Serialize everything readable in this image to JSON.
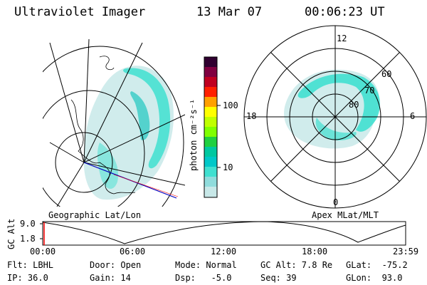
{
  "header": {
    "instrument": "Ultraviolet Imager",
    "date": "13 Mar 07",
    "time": "00:06:23 UT"
  },
  "geo_panel": {
    "label": "Geographic Lat/Lon"
  },
  "apex_panel": {
    "label": "Apex MLat/MLT",
    "mlt_labels": {
      "top": "12",
      "bottom": "0",
      "left": "18",
      "right": "6"
    },
    "lat_labels": [
      "60",
      "70",
      "80"
    ]
  },
  "colorbar": {
    "unit_label": "photon cm⁻²s⁻¹",
    "ticks": [
      "100",
      "10"
    ],
    "colors": [
      "#c8e8e8",
      "#40e0d0",
      "#00c8c8",
      "#20d040",
      "#80ff00",
      "#ffff00",
      "#ffa000",
      "#ff2000",
      "#c00020",
      "#800040",
      "#300030"
    ]
  },
  "altitude_plot": {
    "ylabel": "GC Alt",
    "yticks": [
      "9.0",
      "1.8"
    ],
    "xticks": [
      "00:00",
      "06:00",
      "12:00",
      "18:00",
      "23:59"
    ],
    "current_marker_color": "#ff0000"
  },
  "info": {
    "filter": "Flt: LBHL",
    "ip": "IP: 36.0",
    "door": "Door: Open",
    "gain": "Gain: 14",
    "mode": "Mode: Normal",
    "dsp": "Dsp:   -5.0",
    "gc_alt": "GC Alt: 7.8 Re",
    "seq": "Seq: 39",
    "glat": "GLat:  -75.2",
    "glon": "GLon:  93.0"
  }
}
